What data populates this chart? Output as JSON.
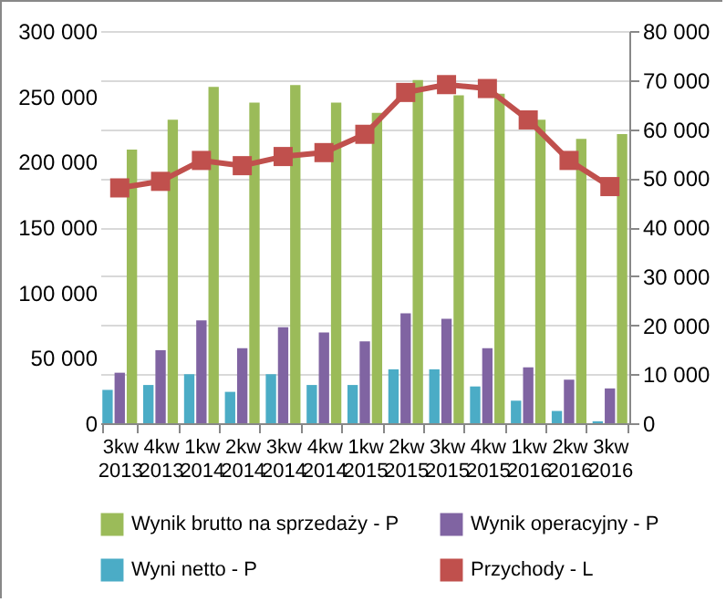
{
  "chart_data": {
    "type": "bar",
    "categories": [
      "3kw 2013",
      "4kw 2013",
      "1kw 2014",
      "2kw 2014",
      "3kw 2014",
      "4kw 2014",
      "1kw 2015",
      "2kw 2015",
      "3kw 2015",
      "4kw 2015",
      "1kw 2016",
      "2kw 2016",
      "3kw 2016"
    ],
    "series": [
      {
        "name": "Wynik brutto na sprzedaży - P",
        "color": "#9bbb59",
        "axis": "y2",
        "values": [
          55800,
          61900,
          68600,
          65400,
          69000,
          65400,
          63300,
          70000,
          66900,
          67200,
          61900,
          58000,
          59000
        ]
      },
      {
        "name": "Wynik operacyjny - P",
        "color": "#8064a2",
        "axis": "y2",
        "values": [
          10300,
          14900,
          21000,
          15300,
          19600,
          18500,
          16700,
          22400,
          21300,
          15300,
          11400,
          8900,
          7100
        ]
      },
      {
        "name": "Wyni netto - P",
        "color": "#4bacc6",
        "axis": "y2",
        "values": [
          6800,
          7800,
          10000,
          6400,
          10000,
          7800,
          7800,
          11000,
          11000,
          7500,
          4600,
          2500,
          400
        ]
      },
      {
        "name": "Przychody - L",
        "type": "line",
        "color": "#c0504d",
        "marker": "square",
        "values": [
          180000,
          185000,
          201000,
          197000,
          204000,
          207000,
          221000,
          253000,
          259000,
          256000,
          232000,
          201000,
          181000
        ]
      }
    ],
    "ylim": [
      0,
      300000
    ],
    "yticks": [
      {
        "value": 0,
        "label": "0"
      },
      {
        "value": 50000,
        "label": "50 000"
      },
      {
        "value": 100000,
        "label": "100 000"
      },
      {
        "value": 150000,
        "label": "150 000"
      },
      {
        "value": 200000,
        "label": "200 000"
      },
      {
        "value": 250000,
        "label": "250 000"
      },
      {
        "value": 300000,
        "label": "300 000"
      }
    ],
    "y2lim": [
      0,
      80000
    ],
    "y2ticks": [
      {
        "value": 0,
        "label": "0"
      },
      {
        "value": 10000,
        "label": "10 000"
      },
      {
        "value": 20000,
        "label": "20 000"
      },
      {
        "value": 30000,
        "label": "30 000"
      },
      {
        "value": 40000,
        "label": "40 000"
      },
      {
        "value": 50000,
        "label": "50 000"
      },
      {
        "value": 60000,
        "label": "60 000"
      },
      {
        "value": 70000,
        "label": "70 000"
      },
      {
        "value": 80000,
        "label": "80 000"
      }
    ],
    "grid": "y2",
    "legend": "bottom"
  }
}
